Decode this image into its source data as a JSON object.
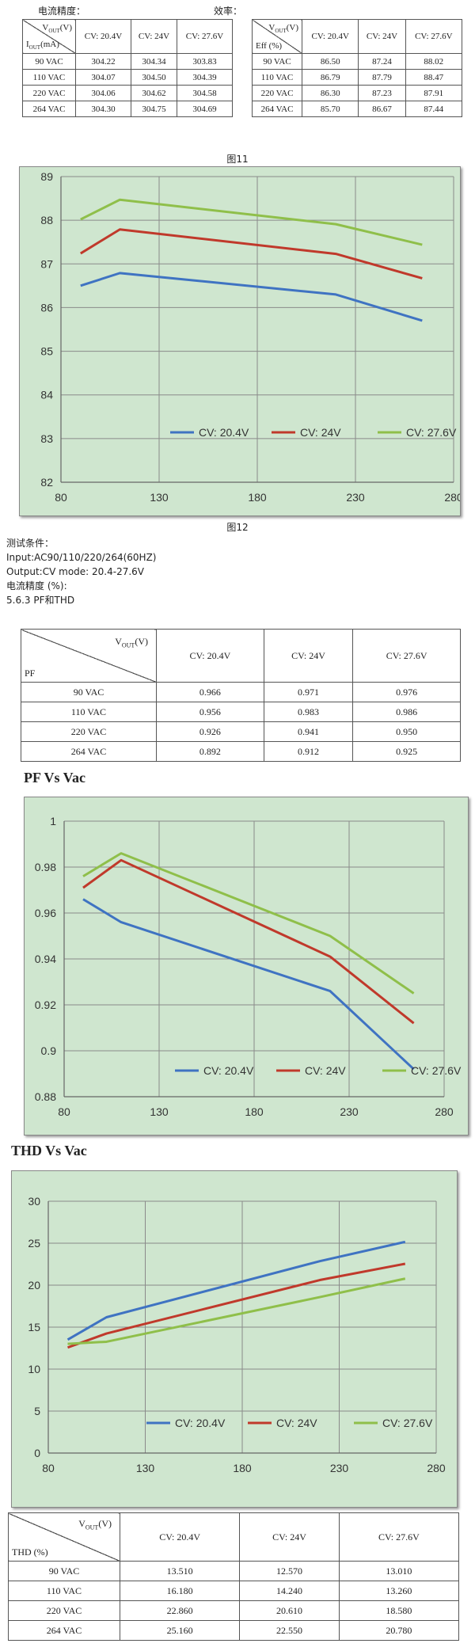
{
  "top": {
    "accuracy_label": "电流精度：",
    "eff_label": "效率："
  },
  "table_current": {
    "vout": "V",
    "vout_sub": "OUT",
    "vout_unit": "(V)",
    "corner_bottom": "I",
    "corner_bottom_sub": "OUT",
    "corner_bottom_unit": "(mA)",
    "headers": [
      "CV: 20.4V",
      "CV: 24V",
      "CV: 27.6V"
    ],
    "rows": [
      {
        "label": "90 VAC",
        "vals": [
          "304.22",
          "304.34",
          "303.83"
        ]
      },
      {
        "label": "110 VAC",
        "vals": [
          "304.07",
          "304.50",
          "304.39"
        ]
      },
      {
        "label": "220 VAC",
        "vals": [
          "304.06",
          "304.62",
          "304.58"
        ]
      },
      {
        "label": "264 VAC",
        "vals": [
          "304.30",
          "304.75",
          "304.69"
        ]
      }
    ]
  },
  "table_eff": {
    "vout": "V",
    "vout_sub": "OUT",
    "vout_unit": "(V)",
    "corner_bottom": "Eff (%)",
    "headers": [
      "CV: 20.4V",
      "CV: 24V",
      "CV: 27.6V"
    ],
    "rows": [
      {
        "label": "90 VAC",
        "vals": [
          "86.50",
          "87.24",
          "88.02"
        ]
      },
      {
        "label": "110 VAC",
        "vals": [
          "86.79",
          "87.79",
          "88.47"
        ]
      },
      {
        "label": "220 VAC",
        "vals": [
          "86.30",
          "87.23",
          "87.91"
        ]
      },
      {
        "label": "264 VAC",
        "vals": [
          "85.70",
          "86.67",
          "87.44"
        ]
      }
    ]
  },
  "fig11": "图11",
  "fig12": "图12",
  "test": {
    "title": "测试条件：",
    "input": "Input:AC90/110/220/264(60HZ)",
    "output": "Output:CV mode: 20.4-27.6V",
    "accuracy": "电流精度 (%):",
    "section": "5.6.3 PF和THD"
  },
  "table_pf": {
    "vout": "V",
    "vout_sub": "OUT",
    "vout_unit": "(V)",
    "corner_bottom": "PF",
    "headers": [
      "CV: 20.4V",
      "CV: 24V",
      "CV: 27.6V"
    ],
    "rows": [
      {
        "label": "90 VAC",
        "vals": [
          "0.966",
          "0.971",
          "0.976"
        ]
      },
      {
        "label": "110 VAC",
        "vals": [
          "0.956",
          "0.983",
          "0.986"
        ]
      },
      {
        "label": "220 VAC",
        "vals": [
          "0.926",
          "0.941",
          "0.950"
        ]
      },
      {
        "label": "264 VAC",
        "vals": [
          "0.892",
          "0.912",
          "0.925"
        ]
      }
    ]
  },
  "pf_heading": "PF Vs Vac",
  "thd_heading": "THD Vs Vac",
  "table_thd": {
    "vout": "V",
    "vout_sub": "OUT",
    "vout_unit": "(V)",
    "corner_bottom": "THD (%)",
    "headers": [
      "CV: 20.4V",
      "CV: 24V",
      "CV: 27.6V"
    ],
    "rows": [
      {
        "label": "90 VAC",
        "vals": [
          "13.510",
          "12.570",
          "13.010"
        ]
      },
      {
        "label": "110 VAC",
        "vals": [
          "16.180",
          "14.240",
          "13.260"
        ]
      },
      {
        "label": "220 VAC",
        "vals": [
          "22.860",
          "20.610",
          "18.580"
        ]
      },
      {
        "label": "264 VAC",
        "vals": [
          "25.160",
          "22.550",
          "20.780"
        ]
      }
    ]
  },
  "colors": {
    "s1": "#3f73c2",
    "s2": "#c0392b",
    "s3": "#8fbf4a",
    "bg": "#cfe6cf",
    "grid": "#8a8a8a"
  },
  "chart_data": [
    {
      "type": "line",
      "xlim": [
        80,
        280
      ],
      "xticks": [
        "80",
        "130",
        "180",
        "230",
        "280"
      ],
      "ylim": [
        82,
        89
      ],
      "yticks": [
        "82",
        "83",
        "84",
        "85",
        "86",
        "87",
        "88",
        "89"
      ],
      "x": [
        90,
        110,
        220,
        264
      ],
      "series": [
        {
          "name": "CV: 20.4V",
          "values": [
            86.5,
            86.79,
            86.3,
            85.7
          ]
        },
        {
          "name": "CV: 24V",
          "values": [
            87.24,
            87.79,
            87.23,
            86.67
          ]
        },
        {
          "name": "CV: 27.6V",
          "values": [
            88.02,
            88.47,
            87.91,
            87.44
          ]
        }
      ],
      "legend": "bottom-right",
      "grid": true
    },
    {
      "type": "line",
      "xlim": [
        80,
        280
      ],
      "xticks": [
        "80",
        "130",
        "180",
        "230",
        "280"
      ],
      "ylim": [
        0.88,
        1.0
      ],
      "yticks": [
        "0.88",
        "0.9",
        "0.92",
        "0.94",
        "0.96",
        "0.98",
        "1"
      ],
      "x": [
        90,
        110,
        220,
        264
      ],
      "series": [
        {
          "name": "CV: 20.4V",
          "values": [
            0.966,
            0.956,
            0.926,
            0.892
          ]
        },
        {
          "name": "CV: 24V",
          "values": [
            0.971,
            0.983,
            0.941,
            0.912
          ]
        },
        {
          "name": "CV: 27.6V",
          "values": [
            0.976,
            0.986,
            0.95,
            0.925
          ]
        }
      ],
      "legend": "bottom-right",
      "grid": true
    },
    {
      "type": "line",
      "xlim": [
        80,
        280
      ],
      "xticks": [
        "80",
        "130",
        "180",
        "230",
        "280"
      ],
      "ylim": [
        0,
        30
      ],
      "yticks": [
        "0",
        "5",
        "10",
        "15",
        "20",
        "25",
        "30"
      ],
      "x": [
        90,
        110,
        220,
        264
      ],
      "series": [
        {
          "name": "CV: 20.4V",
          "values": [
            13.51,
            16.18,
            22.86,
            25.16
          ]
        },
        {
          "name": "CV: 24V",
          "values": [
            12.57,
            14.24,
            20.61,
            22.55
          ]
        },
        {
          "name": "CV: 27.6V",
          "values": [
            13.01,
            13.26,
            18.58,
            20.78
          ]
        }
      ],
      "legend": "bottom-left",
      "grid": true
    }
  ]
}
